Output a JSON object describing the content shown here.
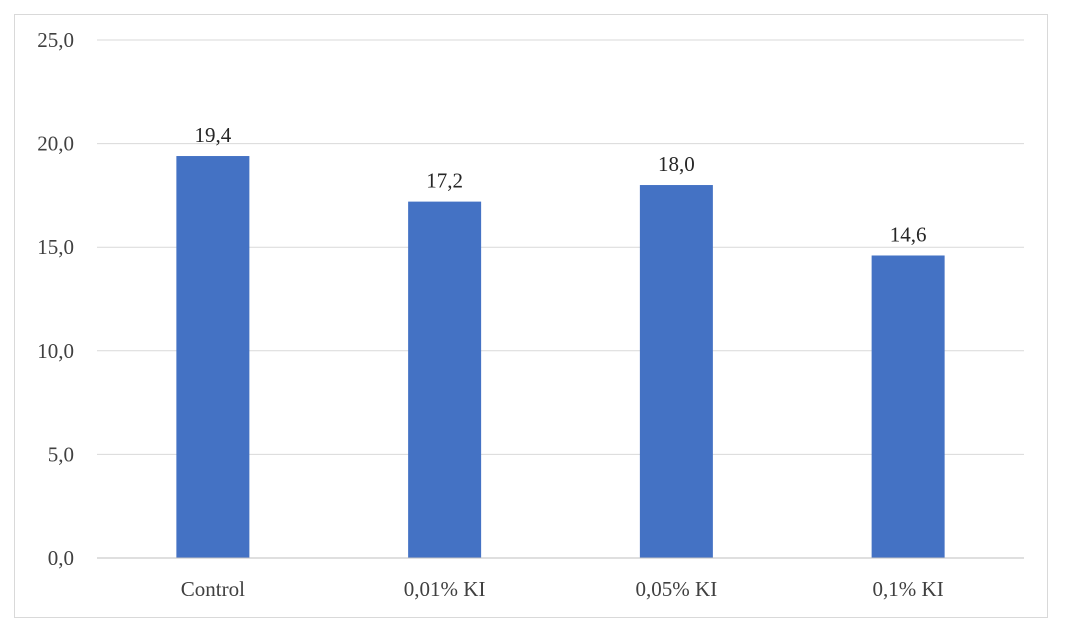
{
  "chart_data": {
    "type": "bar",
    "categories": [
      "Control",
      "0,01% KI",
      "0,05% KI",
      "0,1% KI"
    ],
    "values": [
      19.4,
      17.2,
      18.0,
      14.6
    ],
    "value_labels": [
      "19,4",
      "17,2",
      "18,0",
      "14,6"
    ],
    "yticks": [
      0,
      5,
      10,
      15,
      20,
      25
    ],
    "ytick_labels": [
      "0,0",
      "5,0",
      "10,0",
      "15,0",
      "20,0",
      "25,0"
    ],
    "ylim": [
      0,
      25
    ],
    "title": "",
    "xlabel": "",
    "ylabel": "",
    "grid": true,
    "legend": "none",
    "bar_color": "#4472C4"
  }
}
